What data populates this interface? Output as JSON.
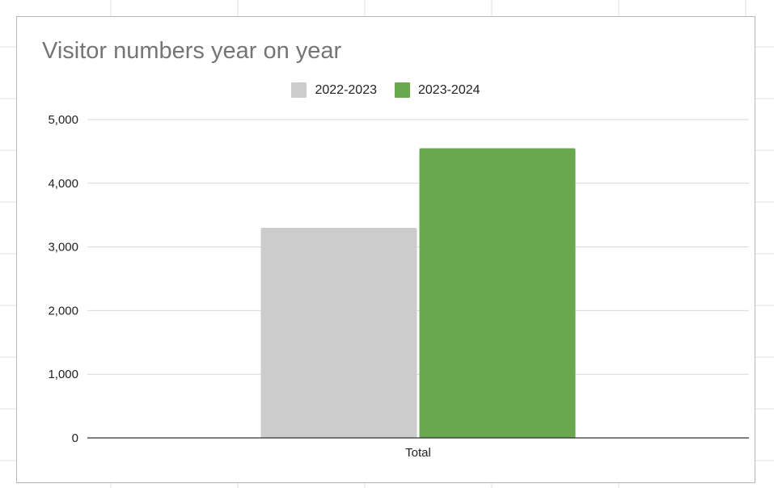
{
  "chart_data": {
    "type": "bar",
    "title": "Visitor numbers year on year",
    "categories": [
      "Total"
    ],
    "series": [
      {
        "name": "2022-2023",
        "values": [
          3300
        ],
        "color": "#cccccc"
      },
      {
        "name": "2023-2024",
        "values": [
          4550
        ],
        "color": "#6aa84f"
      }
    ],
    "xlabel": "",
    "ylabel": "",
    "ylim": [
      0,
      5000
    ],
    "yticks": [
      0,
      1000,
      2000,
      3000,
      4000,
      5000
    ],
    "ytick_labels": [
      "0",
      "1,000",
      "2,000",
      "3,000",
      "4,000",
      "5,000"
    ],
    "grid": true,
    "legend_position": "top"
  }
}
